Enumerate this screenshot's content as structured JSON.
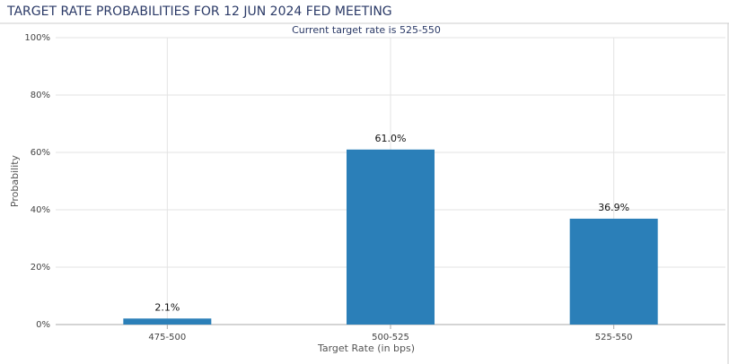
{
  "chart_data": {
    "type": "bar",
    "title": "TARGET RATE PROBABILITIES FOR 12 JUN 2024 FED MEETING",
    "subtitle": "Current target rate is 525-550",
    "x_label": "Target Rate (in bps)",
    "y_label": "Probability",
    "categories": [
      "475-500",
      "500-525",
      "525-550"
    ],
    "values": [
      2.1,
      61.0,
      36.9
    ],
    "value_labels": [
      "2.1%",
      "61.0%",
      "36.9%"
    ],
    "color": "#2b7fb8",
    "ylim": [
      0,
      100
    ],
    "yticks": [
      {
        "value": 0,
        "label": "0%"
      },
      {
        "value": 20,
        "label": "20%"
      },
      {
        "value": 40,
        "label": "40%"
      },
      {
        "value": 60,
        "label": "60%"
      },
      {
        "value": 80,
        "label": "80%"
      },
      {
        "value": 100,
        "label": "100%"
      }
    ],
    "grid": true
  }
}
